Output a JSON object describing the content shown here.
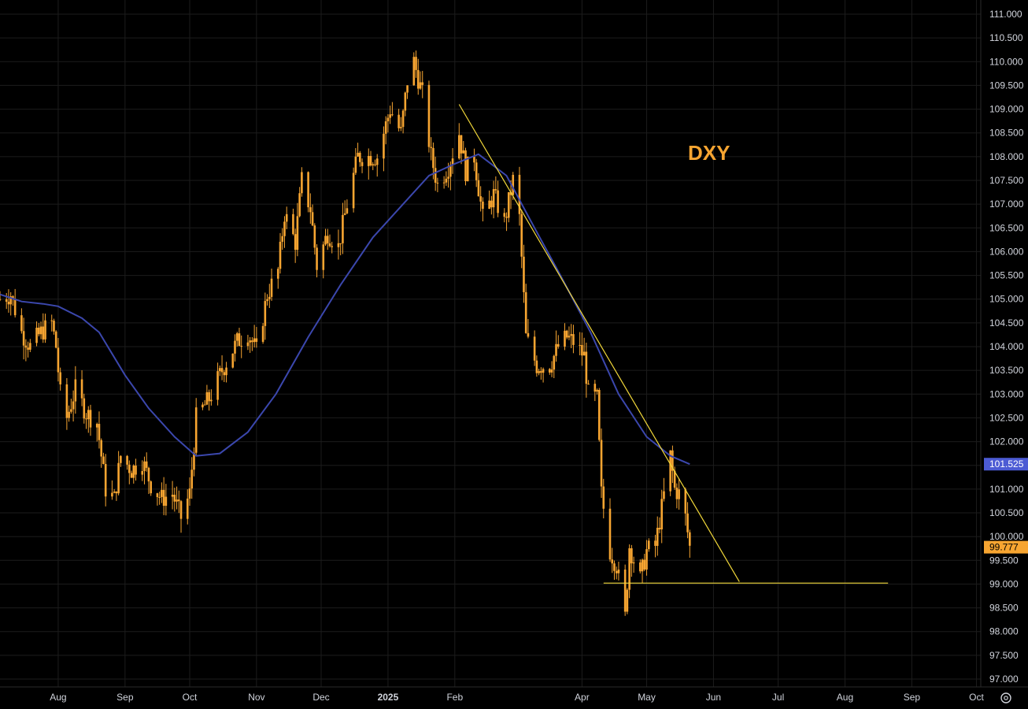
{
  "chart_data": {
    "type": "candlestick",
    "annotation": "DXY",
    "ylim": [
      97.0,
      111.0
    ],
    "y_ticks": [
      "111.000",
      "110.500",
      "110.000",
      "109.500",
      "109.000",
      "108.500",
      "108.000",
      "107.500",
      "107.000",
      "106.500",
      "106.000",
      "105.500",
      "105.000",
      "104.500",
      "104.000",
      "103.500",
      "103.000",
      "102.500",
      "102.000",
      "101.500",
      "101.000",
      "100.500",
      "100.000",
      "99.500",
      "99.000",
      "98.500",
      "98.000",
      "97.500",
      "97.000"
    ],
    "x_ticks": [
      {
        "label": "Aug",
        "date": "2024-08-01"
      },
      {
        "label": "Sep",
        "date": "2024-09-01"
      },
      {
        "label": "Oct",
        "date": "2024-10-01"
      },
      {
        "label": "Nov",
        "date": "2024-11-01"
      },
      {
        "label": "Dec",
        "date": "2024-12-01"
      },
      {
        "label": "2025",
        "date": "2025-01-01",
        "bold": true
      },
      {
        "label": "Feb",
        "date": "2025-02-01"
      },
      {
        "label": "Apr",
        "date": "2025-04-01"
      },
      {
        "label": "May",
        "date": "2025-05-01"
      },
      {
        "label": "Jun",
        "date": "2025-06-01"
      },
      {
        "label": "Jul",
        "date": "2025-07-01"
      },
      {
        "label": "Aug",
        "date": "2025-08-01"
      },
      {
        "label": "Sep",
        "date": "2025-09-01"
      },
      {
        "label": "Oct",
        "date": "2025-10-01"
      }
    ],
    "x_start": "2024-07-05",
    "x_end": "2025-10-03",
    "price_series": [
      {
        "date": "2024-07-05",
        "value": 105.0
      },
      {
        "date": "2024-07-10",
        "value": 105.1
      },
      {
        "date": "2024-07-15",
        "value": 104.3
      },
      {
        "date": "2024-07-19",
        "value": 104.0
      },
      {
        "date": "2024-07-24",
        "value": 104.3
      },
      {
        "date": "2024-07-29",
        "value": 104.5
      },
      {
        "date": "2024-07-31",
        "value": 104.0
      },
      {
        "date": "2024-08-02",
        "value": 103.0
      },
      {
        "date": "2024-08-05",
        "value": 102.5
      },
      {
        "date": "2024-08-09",
        "value": 103.1
      },
      {
        "date": "2024-08-14",
        "value": 102.6
      },
      {
        "date": "2024-08-19",
        "value": 102.4
      },
      {
        "date": "2024-08-23",
        "value": 101.0
      },
      {
        "date": "2024-08-27",
        "value": 100.8
      },
      {
        "date": "2024-08-30",
        "value": 101.7
      },
      {
        "date": "2024-09-04",
        "value": 101.4
      },
      {
        "date": "2024-09-09",
        "value": 101.6
      },
      {
        "date": "2024-09-13",
        "value": 101.1
      },
      {
        "date": "2024-09-18",
        "value": 100.8
      },
      {
        "date": "2024-09-23",
        "value": 100.9
      },
      {
        "date": "2024-09-27",
        "value": 100.4
      },
      {
        "date": "2024-10-01",
        "value": 100.9
      },
      {
        "date": "2024-10-04",
        "value": 102.5
      },
      {
        "date": "2024-10-10",
        "value": 102.9
      },
      {
        "date": "2024-10-16",
        "value": 103.5
      },
      {
        "date": "2024-10-23",
        "value": 104.1
      },
      {
        "date": "2024-10-28",
        "value": 104.3
      },
      {
        "date": "2024-11-01",
        "value": 103.9
      },
      {
        "date": "2024-11-06",
        "value": 105.1
      },
      {
        "date": "2024-11-11",
        "value": 105.6
      },
      {
        "date": "2024-11-14",
        "value": 106.8
      },
      {
        "date": "2024-11-19",
        "value": 106.2
      },
      {
        "date": "2024-11-22",
        "value": 107.5
      },
      {
        "date": "2024-11-26",
        "value": 106.9
      },
      {
        "date": "2024-11-29",
        "value": 105.7
      },
      {
        "date": "2024-12-04",
        "value": 106.4
      },
      {
        "date": "2024-12-09",
        "value": 106.1
      },
      {
        "date": "2024-12-13",
        "value": 107.0
      },
      {
        "date": "2024-12-18",
        "value": 108.0
      },
      {
        "date": "2024-12-23",
        "value": 108.0
      },
      {
        "date": "2024-12-27",
        "value": 108.0
      },
      {
        "date": "2025-01-02",
        "value": 109.0
      },
      {
        "date": "2025-01-07",
        "value": 108.5
      },
      {
        "date": "2025-01-10",
        "value": 109.6
      },
      {
        "date": "2025-01-13",
        "value": 110.0
      },
      {
        "date": "2025-01-17",
        "value": 109.3
      },
      {
        "date": "2025-01-21",
        "value": 108.0
      },
      {
        "date": "2025-01-24",
        "value": 107.4
      },
      {
        "date": "2025-01-29",
        "value": 107.8
      },
      {
        "date": "2025-02-03",
        "value": 108.5
      },
      {
        "date": "2025-02-06",
        "value": 107.7
      },
      {
        "date": "2025-02-10",
        "value": 108.0
      },
      {
        "date": "2025-02-14",
        "value": 106.7
      },
      {
        "date": "2025-02-19",
        "value": 107.2
      },
      {
        "date": "2025-02-24",
        "value": 106.6
      },
      {
        "date": "2025-02-28",
        "value": 107.5
      },
      {
        "date": "2025-03-03",
        "value": 106.7
      },
      {
        "date": "2025-03-06",
        "value": 104.2
      },
      {
        "date": "2025-03-11",
        "value": 103.6
      },
      {
        "date": "2025-03-17",
        "value": 103.6
      },
      {
        "date": "2025-03-21",
        "value": 104.0
      },
      {
        "date": "2025-03-25",
        "value": 104.2
      },
      {
        "date": "2025-03-28",
        "value": 104.1
      },
      {
        "date": "2025-04-02",
        "value": 103.8
      },
      {
        "date": "2025-04-04",
        "value": 103.0
      },
      {
        "date": "2025-04-08",
        "value": 102.9
      },
      {
        "date": "2025-04-10",
        "value": 100.9
      },
      {
        "date": "2025-04-14",
        "value": 99.7
      },
      {
        "date": "2025-04-17",
        "value": 99.4
      },
      {
        "date": "2025-04-21",
        "value": 98.3
      },
      {
        "date": "2025-04-23",
        "value": 99.8
      },
      {
        "date": "2025-04-28",
        "value": 99.1
      },
      {
        "date": "2025-05-01",
        "value": 99.7
      },
      {
        "date": "2025-05-05",
        "value": 99.8
      },
      {
        "date": "2025-05-08",
        "value": 100.6
      },
      {
        "date": "2025-05-12",
        "value": 101.7
      },
      {
        "date": "2025-05-14",
        "value": 101.0
      },
      {
        "date": "2025-05-16",
        "value": 100.9
      },
      {
        "date": "2025-05-19",
        "value": 100.4
      },
      {
        "date": "2025-05-21",
        "value": 99.777
      }
    ],
    "moving_average": [
      {
        "date": "2024-07-05",
        "value": 105.1
      },
      {
        "date": "2024-07-15",
        "value": 104.95
      },
      {
        "date": "2024-07-25",
        "value": 104.9
      },
      {
        "date": "2024-08-01",
        "value": 104.85
      },
      {
        "date": "2024-08-12",
        "value": 104.6
      },
      {
        "date": "2024-08-20",
        "value": 104.3
      },
      {
        "date": "2024-09-01",
        "value": 103.4
      },
      {
        "date": "2024-09-12",
        "value": 102.7
      },
      {
        "date": "2024-09-24",
        "value": 102.1
      },
      {
        "date": "2024-10-04",
        "value": 101.7
      },
      {
        "date": "2024-10-15",
        "value": 101.75
      },
      {
        "date": "2024-10-28",
        "value": 102.2
      },
      {
        "date": "2024-11-10",
        "value": 103.0
      },
      {
        "date": "2024-11-25",
        "value": 104.2
      },
      {
        "date": "2024-12-10",
        "value": 105.3
      },
      {
        "date": "2024-12-25",
        "value": 106.3
      },
      {
        "date": "2025-01-08",
        "value": 107.0
      },
      {
        "date": "2025-01-20",
        "value": 107.6
      },
      {
        "date": "2025-02-01",
        "value": 107.85
      },
      {
        "date": "2025-02-12",
        "value": 108.05
      },
      {
        "date": "2025-02-25",
        "value": 107.6
      },
      {
        "date": "2025-03-10",
        "value": 106.5
      },
      {
        "date": "2025-03-22",
        "value": 105.5
      },
      {
        "date": "2025-04-05",
        "value": 104.3
      },
      {
        "date": "2025-04-18",
        "value": 103.0
      },
      {
        "date": "2025-05-01",
        "value": 102.1
      },
      {
        "date": "2025-05-12",
        "value": 101.7
      },
      {
        "date": "2025-05-21",
        "value": 101.525
      }
    ],
    "trendline": [
      {
        "date": "2025-02-03",
        "value": 109.1
      },
      {
        "date": "2025-06-13",
        "value": 99.05
      }
    ],
    "support_line": [
      {
        "date": "2025-04-11",
        "value": 99.02
      },
      {
        "date": "2025-08-21",
        "value": 99.02
      }
    ],
    "last_price": "99.777",
    "ma_value": "101.525",
    "colors": {
      "candle": "#f7a531",
      "ma": "#3b47ad",
      "trendline": "#f2d83a",
      "grid": "#1c1c1c",
      "ma_badge": "#4c5bd4",
      "price_badge": "#f7a531"
    }
  }
}
